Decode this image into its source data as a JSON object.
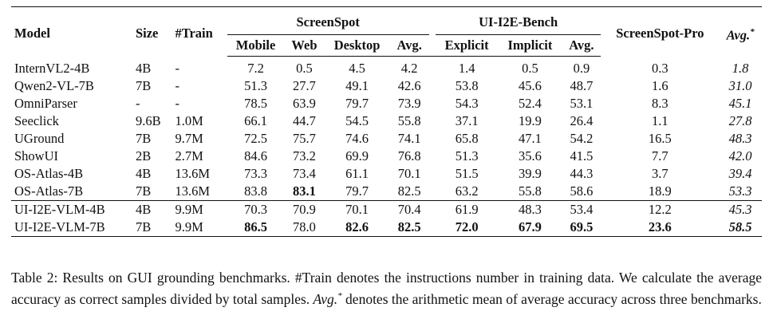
{
  "table": {
    "headers": {
      "model": "Model",
      "size": "Size",
      "train": "#Train",
      "screenspot": "ScreenSpot",
      "ui_i2e": "UI-I2E-Bench",
      "screenspot_pro": "ScreenSpot-Pro",
      "avg_star": "Avg.*",
      "ss_cols": [
        "Mobile",
        "Web",
        "Desktop",
        "Avg."
      ],
      "ui_cols": [
        "Explicit",
        "Implicit",
        "Avg."
      ]
    },
    "rows": [
      {
        "model": "InternVL2-4B",
        "size": "4B",
        "train": "-",
        "mobile": "7.2",
        "web": "0.5",
        "desktop": "4.5",
        "ss_avg": "4.2",
        "explicit": "1.4",
        "implicit": "0.5",
        "ui_avg": "0.9",
        "pro": "0.3",
        "avg": "1.8"
      },
      {
        "model": "Qwen2-VL-7B",
        "size": "7B",
        "train": "-",
        "mobile": "51.3",
        "web": "27.7",
        "desktop": "49.1",
        "ss_avg": "42.6",
        "explicit": "53.8",
        "implicit": "45.6",
        "ui_avg": "48.7",
        "pro": "1.6",
        "avg": "31.0"
      },
      {
        "model": "OmniParser",
        "size": "-",
        "train": "-",
        "mobile": "78.5",
        "web": "63.9",
        "desktop": "79.7",
        "ss_avg": "73.9",
        "explicit": "54.3",
        "implicit": "52.4",
        "ui_avg": "53.1",
        "pro": "8.3",
        "avg": "45.1"
      },
      {
        "model": "Seeclick",
        "size": "9.6B",
        "train": "1.0M",
        "mobile": "66.1",
        "web": "44.7",
        "desktop": "54.5",
        "ss_avg": "55.8",
        "explicit": "37.1",
        "implicit": "19.9",
        "ui_avg": "26.4",
        "pro": "1.1",
        "avg": "27.8"
      },
      {
        "model": "UGround",
        "size": "7B",
        "train": "9.7M",
        "mobile": "72.5",
        "web": "75.7",
        "desktop": "74.6",
        "ss_avg": "74.1",
        "explicit": "65.8",
        "implicit": "47.1",
        "ui_avg": "54.2",
        "pro": "16.5",
        "avg": "48.3"
      },
      {
        "model": "ShowUI",
        "size": "2B",
        "train": "2.7M",
        "mobile": "84.6",
        "web": "73.2",
        "desktop": "69.9",
        "ss_avg": "76.8",
        "explicit": "51.3",
        "implicit": "35.6",
        "ui_avg": "41.5",
        "pro": "7.7",
        "avg": "42.0"
      },
      {
        "model": "OS-Atlas-4B",
        "size": "4B",
        "train": "13.6M",
        "mobile": "73.3",
        "web": "73.4",
        "desktop": "61.1",
        "ss_avg": "70.1",
        "explicit": "51.5",
        "implicit": "39.9",
        "ui_avg": "44.3",
        "pro": "3.7",
        "avg": "39.4"
      },
      {
        "model": "OS-Atlas-7B",
        "size": "7B",
        "train": "13.6M",
        "mobile": "83.8",
        "web": "83.1",
        "desktop": "79.7",
        "ss_avg": "82.5",
        "explicit": "63.2",
        "implicit": "55.8",
        "ui_avg": "58.6",
        "pro": "18.9",
        "avg": "53.3"
      },
      {
        "model": "UI-I2E-VLM-4B",
        "size": "4B",
        "train": "9.9M",
        "mobile": "70.3",
        "web": "70.9",
        "desktop": "70.1",
        "ss_avg": "70.4",
        "explicit": "61.9",
        "implicit": "48.3",
        "ui_avg": "53.4",
        "pro": "12.2",
        "avg": "45.3"
      },
      {
        "model": "UI-I2E-VLM-7B",
        "size": "7B",
        "train": "9.9M",
        "mobile": "86.5",
        "web": "78.0",
        "desktop": "82.6",
        "ss_avg": "82.5",
        "explicit": "72.0",
        "implicit": "67.9",
        "ui_avg": "69.5",
        "pro": "23.6",
        "avg": "58.5"
      }
    ]
  },
  "caption": {
    "prefix": "Table 2: Results on GUI grounding benchmarks. #Train denotes the instructions number in training data. We calculate the average accuracy as correct samples divided by total samples. ",
    "emph": "Avg.*",
    "suffix": " denotes the arithmetic mean of average accuracy across three benchmarks."
  }
}
